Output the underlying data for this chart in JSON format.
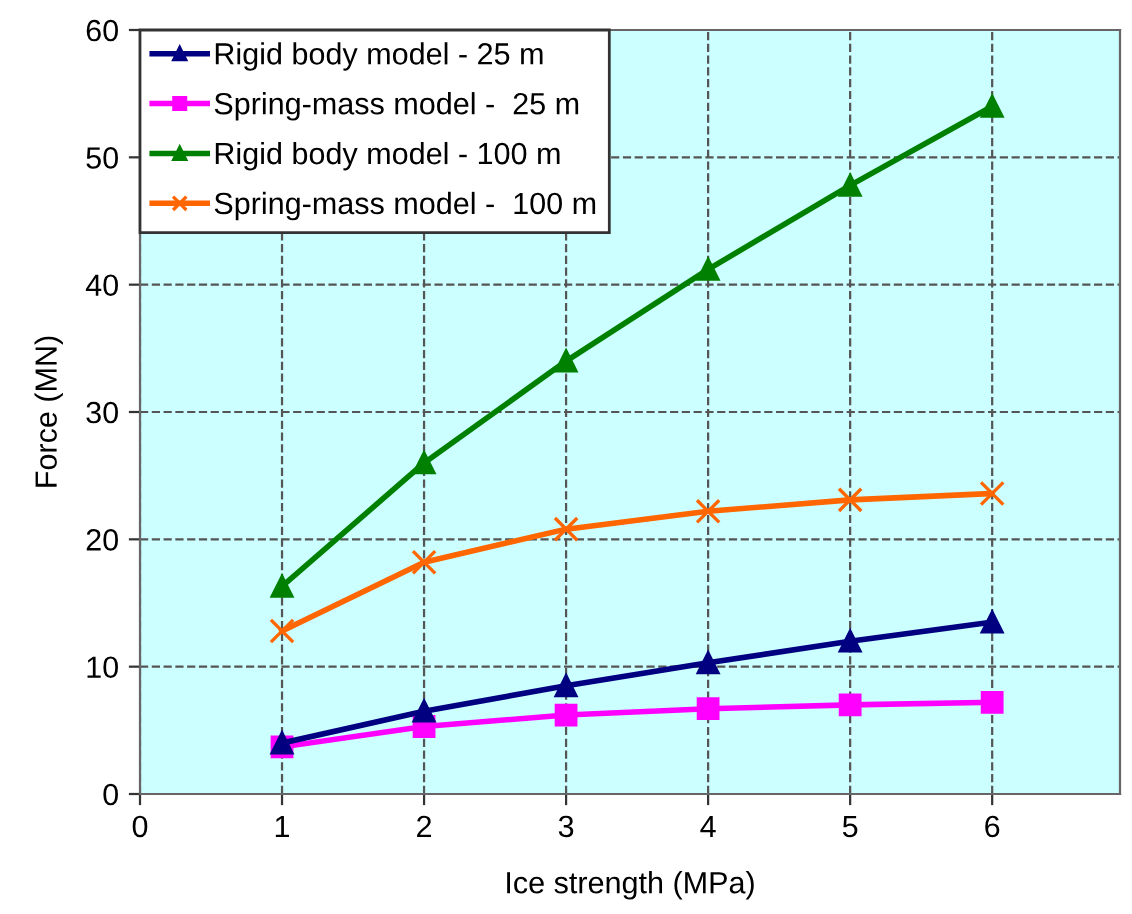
{
  "chart_data": {
    "type": "line",
    "xlabel": "Ice strength (MPa)",
    "ylabel": "Force (MN)",
    "x": [
      1,
      2,
      3,
      4,
      5,
      6
    ],
    "series": [
      {
        "name": "Rigid body model - 25 m",
        "color": "#000080",
        "marker": "triangle",
        "values": [
          4.0,
          6.5,
          8.5,
          10.3,
          12.0,
          13.5
        ]
      },
      {
        "name": "Spring-mass model -  25 m",
        "color": "#ff00ff",
        "marker": "square",
        "values": [
          3.7,
          5.3,
          6.2,
          6.7,
          7.0,
          7.2
        ]
      },
      {
        "name": "Rigid body model - 100 m",
        "color": "#008000",
        "marker": "triangle",
        "values": [
          16.3,
          26.0,
          34.0,
          41.2,
          47.8,
          54.0
        ]
      },
      {
        "name": "Spring-mass model -  100 m",
        "color": "#ff6600",
        "marker": "cross",
        "values": [
          12.8,
          18.2,
          20.8,
          22.2,
          23.1,
          23.6
        ]
      }
    ],
    "xlim": [
      0,
      6.9
    ],
    "xticks": [
      0,
      1,
      2,
      3,
      4,
      5,
      6
    ],
    "ylim": [
      0,
      60
    ],
    "yticks": [
      0,
      10,
      20,
      30,
      40,
      50,
      60
    ],
    "grid": true,
    "legend": "top left",
    "line_style": "solid"
  }
}
